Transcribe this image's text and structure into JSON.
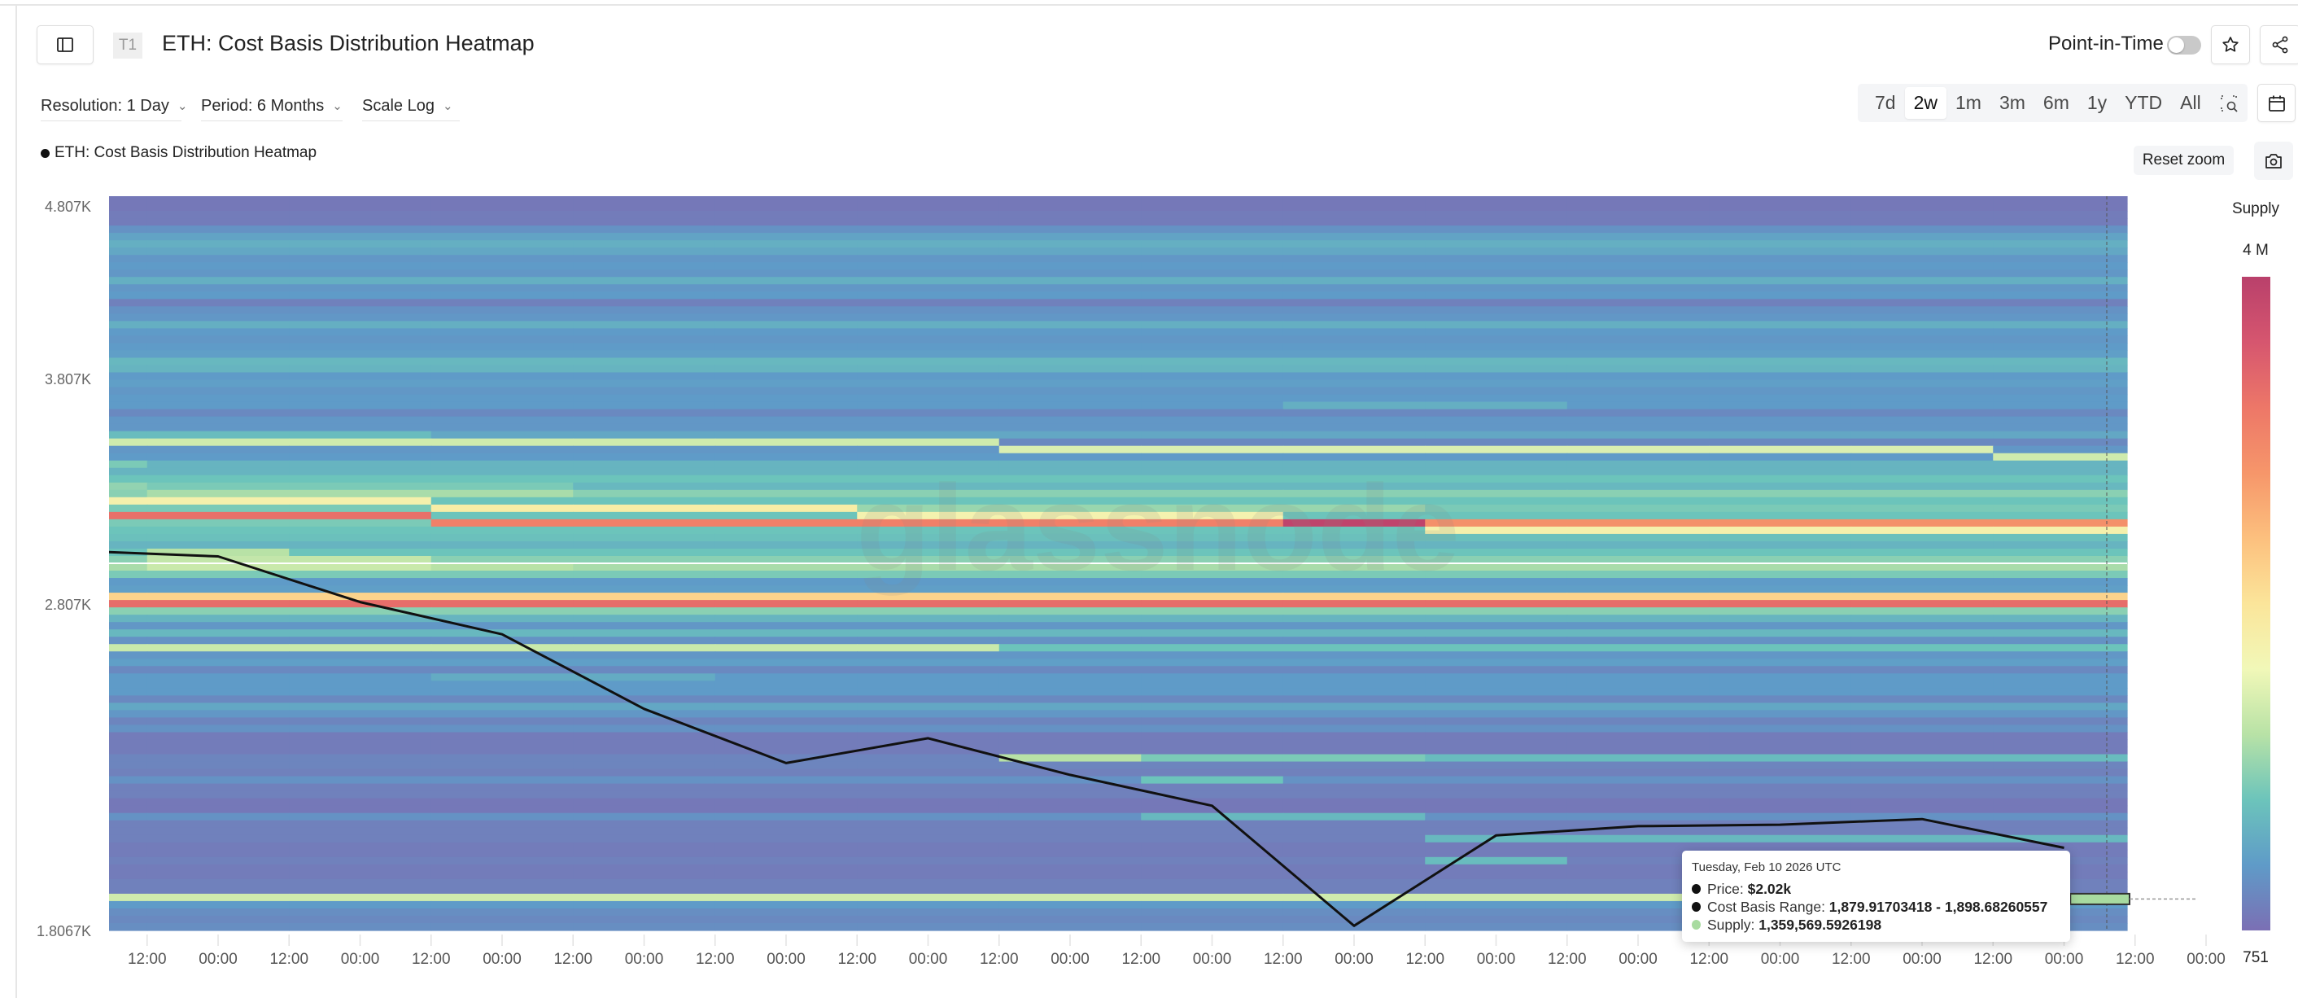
{
  "header": {
    "badge": "T1",
    "title": "ETH: Cost Basis Distribution Heatmap",
    "point_in_time_label": "Point-in-Time",
    "point_in_time_enabled": false
  },
  "controls": {
    "resolution": "Resolution: 1 Day",
    "period": "Period: 6 Months",
    "scale": "Scale Log"
  },
  "range_options": [
    "7d",
    "2w",
    "1m",
    "3m",
    "6m",
    "1y",
    "YTD",
    "All"
  ],
  "range_selected": "2w",
  "reset_zoom_label": "Reset zoom",
  "legend_label": "ETH: Cost Basis Distribution Heatmap",
  "watermark": "glassnode",
  "icons": {
    "sidebar_toggle": "sidebar-toggle-icon",
    "star": "star-icon",
    "share": "share-icon",
    "zoom_select": "zoom-select-icon",
    "calendar": "calendar-icon",
    "camera": "camera-icon"
  },
  "tooltip": {
    "date": "Tuesday, Feb 10 2026 UTC",
    "price_label": "Price: ",
    "price_value": "$2.02k",
    "range_label": "Cost Basis Range: ",
    "range_value": "1,879.91703418 - 1,898.68260557",
    "supply_label": "Supply: ",
    "supply_value": "1,359,569.5926198",
    "price_dot_color": "#111111",
    "supply_dot_color": "#a8dba0"
  },
  "chart_data": {
    "type": "heatmap",
    "title": "ETH: Cost Basis Distribution Heatmap",
    "y_axis": {
      "scale": "log",
      "range": [
        1806.7,
        4870
      ],
      "tick_labels": [
        "4.807K",
        "3.807K",
        "2.807K",
        "1.8067K"
      ],
      "tick_values": [
        4807,
        3807,
        2807,
        1806.7
      ]
    },
    "x_axis": {
      "range": [
        "2026-01-27T05:34:00Z",
        "2026-02-10T10:35:00Z"
      ],
      "tick_start": "2026-01-27T12:00:00Z",
      "tick_step_hours": 12,
      "tick_labels": [
        "12:00",
        "00:00",
        "12:00",
        "00:00",
        "12:00",
        "00:00",
        "12:00",
        "00:00",
        "12:00",
        "00:00",
        "12:00",
        "00:00",
        "12:00",
        "00:00",
        "12:00",
        "00:00",
        "12:00",
        "00:00",
        "12:00",
        "00:00",
        "12:00",
        "00:00",
        "12:00",
        "00:00",
        "12:00",
        "00:00",
        "12:00",
        "00:00",
        "12:00",
        "00:00"
      ]
    },
    "columns": [
      "2026-01-27",
      "2026-01-28",
      "2026-01-29",
      "2026-01-30",
      "2026-01-31",
      "2026-02-01",
      "2026-02-02",
      "2026-02-03",
      "2026-02-04",
      "2026-02-05",
      "2026-02-06",
      "2026-02-07",
      "2026-02-08",
      "2026-02-09",
      "2026-02-10"
    ],
    "row_order": "high-to-low",
    "row_supply": [
      80000,
      80000,
      120000,
      120000,
      320000,
      480000,
      600000,
      520000,
      360000,
      400000,
      360000,
      600000,
      360000,
      400000,
      160000,
      320000,
      360000,
      600000,
      400000,
      360000,
      400000,
      440000,
      680000,
      640000,
      400000,
      440000,
      360000,
      400000,
      400000,
      240000,
      360000,
      360000,
      520000,
      240000,
      360000,
      400000,
      640000,
      640000,
      800000,
      680000,
      960000,
      800000,
      880000,
      800000,
      880000,
      800000,
      760000,
      640000,
      800000,
      960000,
      1120000,
      880000,
      400000,
      440000,
      2200000,
      3320000,
      960000,
      640000,
      360000,
      680000,
      320000,
      800000,
      360000,
      440000,
      240000,
      400000,
      400000,
      400000,
      240000,
      520000,
      360000,
      200000,
      320000,
      120000,
      120000,
      120000,
      200000,
      200000,
      160000,
      320000,
      160000,
      160000,
      80000,
      80000,
      320000,
      160000,
      160000,
      160000,
      120000,
      120000,
      160000,
      120000,
      120000,
      160000,
      160000,
      1359570,
      400000,
      280000,
      240000,
      280000
    ],
    "supply_overrides": [
      {
        "row": 33,
        "cols": [
          0,
          6
        ],
        "supply": 1360000
      },
      {
        "row": 34,
        "cols": [
          7,
          13
        ],
        "supply": 1440000
      },
      {
        "row": 35,
        "cols": [
          14,
          14
        ],
        "supply": 1360000
      },
      {
        "row": 32,
        "cols": [
          0,
          2
        ],
        "supply": 720000
      },
      {
        "row": 36,
        "cols": [
          0,
          0
        ],
        "supply": 880000
      },
      {
        "row": 39,
        "cols": [
          0,
          0
        ],
        "supply": 1000000
      },
      {
        "row": 39,
        "cols": [
          1,
          3
        ],
        "supply": 880000
      },
      {
        "row": 40,
        "cols": [
          1,
          3
        ],
        "supply": 1120000
      },
      {
        "row": 41,
        "cols": [
          0,
          2
        ],
        "supply": 1760000
      },
      {
        "row": 42,
        "cols": [
          3,
          5
        ],
        "supply": 1840000
      },
      {
        "row": 42,
        "cols": [
          6,
          9
        ],
        "supply": 1040000
      },
      {
        "row": 43,
        "cols": [
          0,
          2
        ],
        "supply": 3280000
      },
      {
        "row": 43,
        "cols": [
          6,
          8
        ],
        "supply": 1720000
      },
      {
        "row": 44,
        "cols": [
          3,
          8
        ],
        "supply": 3080000
      },
      {
        "row": 44,
        "cols": [
          9,
          9
        ],
        "supply": 3920000
      },
      {
        "row": 44,
        "cols": [
          10,
          14
        ],
        "supply": 2880000
      },
      {
        "row": 45,
        "cols": [
          10,
          14
        ],
        "supply": 1760000
      },
      {
        "row": 48,
        "cols": [
          1,
          1
        ],
        "supply": 1200000
      },
      {
        "row": 49,
        "cols": [
          1,
          2
        ],
        "supply": 1280000
      },
      {
        "row": 50,
        "cols": [
          1,
          2
        ],
        "supply": 1320000
      },
      {
        "row": 50,
        "cols": [
          3,
          3
        ],
        "supply": 1200000
      },
      {
        "row": 61,
        "cols": [
          0,
          6
        ],
        "supply": 1320000
      },
      {
        "row": 76,
        "cols": [
          7,
          7
        ],
        "supply": 1200000
      },
      {
        "row": 76,
        "cols": [
          8,
          9
        ],
        "supply": 880000
      },
      {
        "row": 76,
        "cols": [
          10,
          14
        ],
        "supply": 720000
      },
      {
        "row": 79,
        "cols": [
          8,
          8
        ],
        "supply": 800000
      },
      {
        "row": 84,
        "cols": [
          8,
          9
        ],
        "supply": 680000
      },
      {
        "row": 87,
        "cols": [
          10,
          14
        ],
        "supply": 680000
      },
      {
        "row": 90,
        "cols": [
          10,
          10
        ],
        "supply": 720000
      },
      {
        "row": 65,
        "cols": [
          3,
          4
        ],
        "supply": 560000
      },
      {
        "row": 28,
        "cols": [
          9,
          10
        ],
        "supply": 600000
      }
    ],
    "highlight": {
      "column": "2026-02-10",
      "row": 95
    },
    "colorbar": {
      "label": "Supply",
      "max_label": "4 M",
      "min_label": "751",
      "min": 751,
      "max": 4000000,
      "colors": [
        "#7b6fb4",
        "#5f9bc8",
        "#6cc4bb",
        "#b8e2a6",
        "#f1f8b8",
        "#fbe59a",
        "#fcc07e",
        "#f6966a",
        "#ed7768",
        "#d6566f",
        "#b9406b"
      ]
    },
    "series": [
      {
        "name": "Price",
        "color": "#111111",
        "dates": [
          "2026-01-27",
          "2026-01-28",
          "2026-01-29",
          "2026-01-30",
          "2026-01-31",
          "2026-02-01",
          "2026-02-02",
          "2026-02-03",
          "2026-02-04",
          "2026-02-05",
          "2026-02-06",
          "2026-02-07",
          "2026-02-08",
          "2026-02-09",
          "2026-02-10"
        ],
        "values": [
          3017,
          2994,
          2815,
          2695,
          2437,
          2265,
          2342,
          2229,
          2138,
          1818,
          2054,
          2080,
          2084,
          2100,
          2020
        ]
      }
    ]
  }
}
